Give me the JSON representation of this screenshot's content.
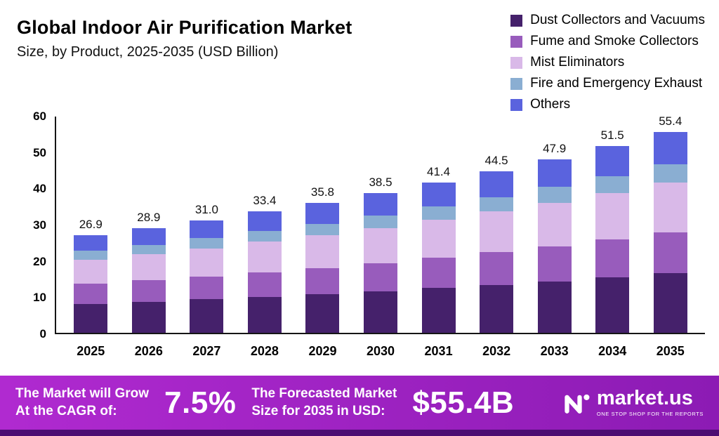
{
  "header": {
    "title": "Global Indoor Air Purification Market",
    "subtitle": "Size, by Product, 2025-2035 (USD Billion)"
  },
  "chart_data": {
    "type": "bar",
    "stacked": true,
    "title": "Global Indoor Air Purification Market Size, by Product, 2025-2035 (USD Billion)",
    "categories": [
      "2025",
      "2026",
      "2027",
      "2028",
      "2029",
      "2030",
      "2031",
      "2032",
      "2033",
      "2034",
      "2035"
    ],
    "totals": [
      "26.9",
      "28.9",
      "31.0",
      "33.4",
      "35.8",
      "38.5",
      "41.4",
      "44.5",
      "47.9",
      "51.5",
      "55.4"
    ],
    "series": [
      {
        "name": "Dust Collectors and Vacuums",
        "color": "#45216b",
        "values": [
          8.0,
          8.6,
          9.2,
          9.9,
          10.6,
          11.4,
          12.3,
          13.2,
          14.2,
          15.3,
          16.4
        ]
      },
      {
        "name": "Fume and Smoke Collectors",
        "color": "#985cbc",
        "values": [
          5.5,
          5.9,
          6.3,
          6.8,
          7.3,
          7.8,
          8.4,
          9.0,
          9.7,
          10.4,
          11.2
        ]
      },
      {
        "name": "Mist Eliminators",
        "color": "#d9b9e8",
        "values": [
          6.7,
          7.2,
          7.8,
          8.4,
          9.0,
          9.7,
          10.4,
          11.2,
          12.0,
          12.9,
          13.9
        ]
      },
      {
        "name": "Fire and Emergency Exhaust",
        "color": "#8aaed2",
        "values": [
          2.4,
          2.6,
          2.8,
          3.0,
          3.2,
          3.5,
          3.7,
          4.0,
          4.3,
          4.6,
          5.0
        ]
      },
      {
        "name": "Others",
        "color": "#5a63de",
        "values": [
          4.3,
          4.6,
          4.9,
          5.3,
          5.7,
          6.1,
          6.6,
          7.1,
          7.7,
          8.3,
          8.9
        ]
      }
    ],
    "ylim": [
      0,
      60
    ],
    "yticks": [
      0,
      10,
      20,
      30,
      40,
      50,
      60
    ],
    "grid": false,
    "legend_position": "top-right"
  },
  "banner": {
    "cagr_line1": "The Market will Grow",
    "cagr_line2": "At the CAGR of:",
    "cagr_value": "7.5%",
    "forecast_line1": "The Forecasted Market",
    "forecast_line2": "Size for 2035 in USD:",
    "forecast_value": "$55.4B",
    "brand": "market.us",
    "tagline": "ONE STOP SHOP FOR THE REPORTS",
    "gradient_left": "#b02ad0",
    "gradient_right": "#8c1bb4",
    "strip_color": "#4b0d72"
  }
}
